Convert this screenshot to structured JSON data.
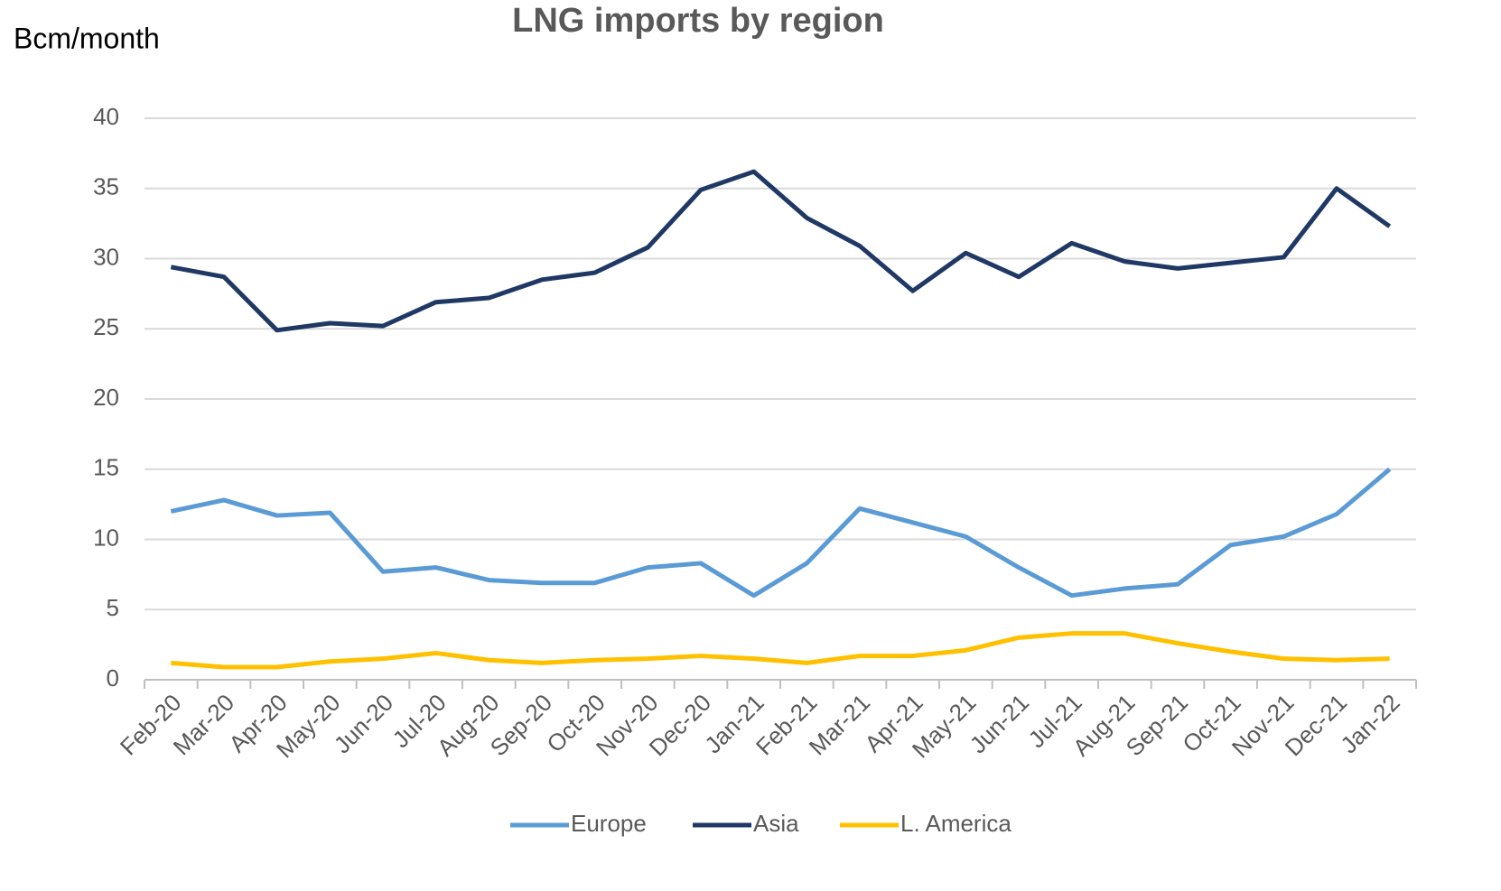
{
  "chart_data": {
    "type": "line",
    "title": "LNG imports by region",
    "y_label": "Bcm/month",
    "categories": [
      "Feb-20",
      "Mar-20",
      "Apr-20",
      "May-20",
      "Jun-20",
      "Jul-20",
      "Aug-20",
      "Sep-20",
      "Oct-20",
      "Nov-20",
      "Dec-20",
      "Jan-21",
      "Feb-21",
      "Mar-21",
      "Apr-21",
      "May-21",
      "Jun-21",
      "Jul-21",
      "Aug-21",
      "Sep-21",
      "Oct-21",
      "Nov-21",
      "Dec-21",
      "Jan-22"
    ],
    "series": [
      {
        "name": "Europe",
        "color": "#5b9bd5",
        "values": [
          12.0,
          12.8,
          11.7,
          11.9,
          7.7,
          8.0,
          7.1,
          6.9,
          6.9,
          8.0,
          8.3,
          6.0,
          8.3,
          12.2,
          11.2,
          10.2,
          8.0,
          6.0,
          6.5,
          6.8,
          9.6,
          10.2,
          11.8,
          15.0
        ]
      },
      {
        "name": "Asia",
        "color": "#1f3864",
        "values": [
          29.4,
          28.7,
          24.9,
          25.4,
          25.2,
          26.9,
          27.2,
          28.5,
          29.0,
          30.8,
          34.9,
          36.2,
          32.9,
          30.9,
          27.7,
          30.4,
          28.7,
          31.1,
          29.8,
          29.3,
          29.7,
          30.1,
          35.0,
          32.3
        ]
      },
      {
        "name": "L. America",
        "color": "#ffc000",
        "values": [
          1.2,
          0.9,
          0.9,
          1.3,
          1.5,
          1.9,
          1.4,
          1.2,
          1.4,
          1.5,
          1.7,
          1.5,
          1.2,
          1.7,
          1.7,
          2.1,
          3.0,
          3.3,
          3.3,
          2.6,
          2.0,
          1.5,
          1.4,
          1.5
        ]
      }
    ],
    "ylim": [
      0,
      40
    ],
    "yticks": [
      0,
      5,
      10,
      15,
      20,
      25,
      30,
      35,
      40
    ],
    "grid": true,
    "legend": "bottom"
  }
}
